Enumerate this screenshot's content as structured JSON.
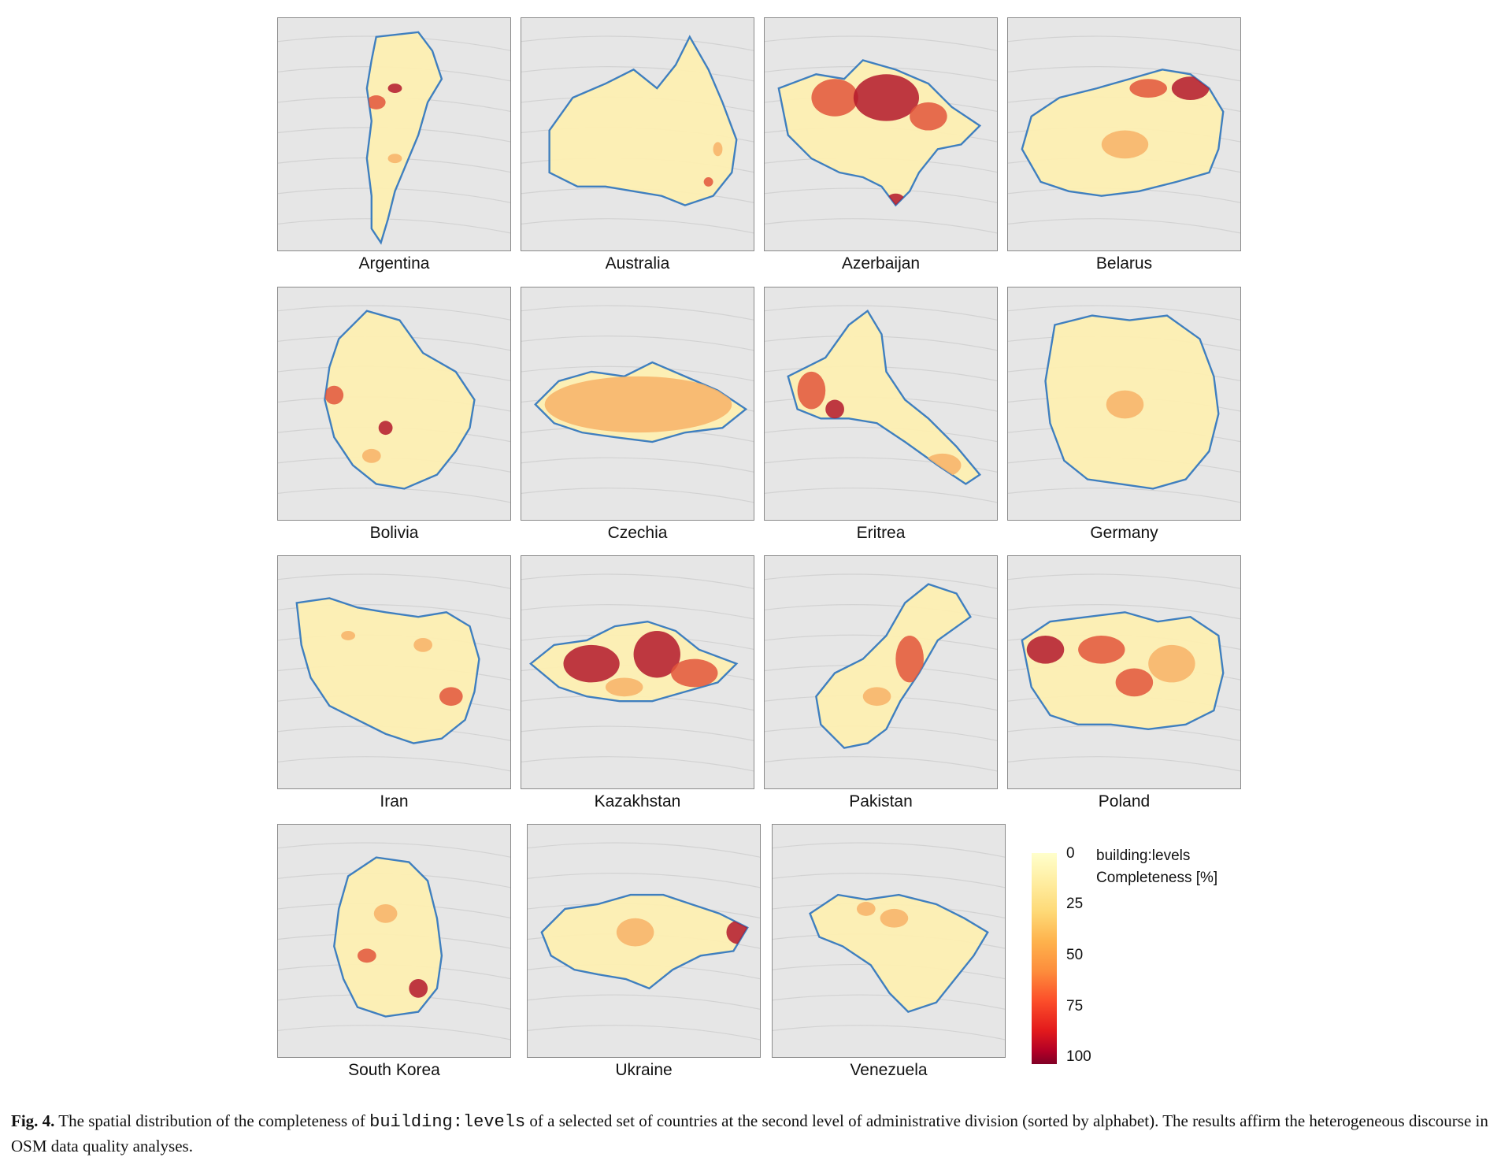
{
  "figure": {
    "panels": [
      {
        "country": "Argentina"
      },
      {
        "country": "Australia"
      },
      {
        "country": "Azerbaijan"
      },
      {
        "country": "Belarus"
      },
      {
        "country": "Bolivia"
      },
      {
        "country": "Czechia"
      },
      {
        "country": "Eritrea"
      },
      {
        "country": "Germany"
      },
      {
        "country": "Iran"
      },
      {
        "country": "Kazakhstan"
      },
      {
        "country": "Pakistan"
      },
      {
        "country": "Poland"
      },
      {
        "country": "South Korea"
      },
      {
        "country": "Ukraine"
      },
      {
        "country": "Venezuela"
      }
    ],
    "legend": {
      "title_line1": "building:levels",
      "title_line2": "Completeness [%]",
      "ticks": [
        "0",
        "25",
        "50",
        "75",
        "100"
      ]
    },
    "caption": {
      "label": "Fig. 4.",
      "text_before": "The spatial distribution of the completeness of",
      "code": "building:levels",
      "text_after": "of a selected set of countries at the second level of administrative division (sorted by alphabet). The results affirm the heterogeneous discourse in OSM data quality analyses."
    },
    "colors": {
      "background_land": "#e6e6e6",
      "sea": "#cfcfcf",
      "country_base": "#fdefb2",
      "medium": "#f7b267",
      "high": "#e2553b",
      "max": "#b3182b",
      "coast": "#3f7fbf"
    }
  }
}
